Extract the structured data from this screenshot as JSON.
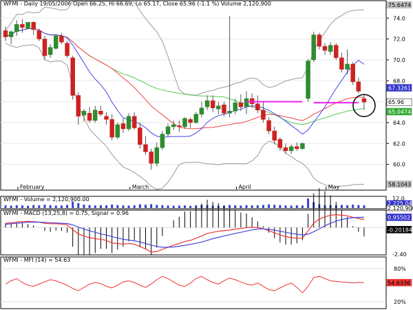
{
  "chart_data": [
    {
      "type": "candlestick",
      "title": "WFMI - Daily 19/05/2006 Open 66.25, Hi 66.69, Lo 65.17, Close 65.96 (-1.1 %) Volume 2,120,900",
      "ylim": [
        57.6,
        75.6
      ],
      "y_ticks": [
        "60.0",
        "62.0",
        "64.0",
        "66.0",
        "68.0",
        "70.0",
        "72.0",
        "74.0"
      ],
      "x_labels": [
        "February",
        "March",
        "April",
        "May"
      ],
      "tags": [
        {
          "label": "75.6474",
          "value": 75.6474,
          "bg": "#c0c0c0",
          "fg": "#000000"
        },
        {
          "label": "67.3261",
          "value": 67.3261,
          "bg": "#3333cc",
          "fg": "#ffffff"
        },
        {
          "label": "65.96",
          "value": 65.96,
          "bg": "#ffffff",
          "fg": "#000000"
        },
        {
          "label": "65.0474",
          "value": 65.0474,
          "bg": "#33aa33",
          "fg": "#ffffff"
        },
        {
          "label": "58.1043",
          "value": 58.1043,
          "bg": "#c0c0c0",
          "fg": "#000000"
        }
      ],
      "candles": [
        [
          72.8,
          73.2,
          71.8,
          72.2
        ],
        [
          72.2,
          72.8,
          71.5,
          72.7
        ],
        [
          72.7,
          73.8,
          72.3,
          73.4
        ],
        [
          73.4,
          73.9,
          72.6,
          73.1
        ],
        [
          73.0,
          73.6,
          72.9,
          73.6
        ],
        [
          73.6,
          73.7,
          72.4,
          72.9
        ],
        [
          72.8,
          73.0,
          71.8,
          72.0
        ],
        [
          72.0,
          72.3,
          70.0,
          70.4
        ],
        [
          70.5,
          71.5,
          70.2,
          71.2
        ],
        [
          71.1,
          72.5,
          71.0,
          72.3
        ],
        [
          72.3,
          72.6,
          71.5,
          71.7
        ],
        [
          71.6,
          71.8,
          70.2,
          70.4
        ],
        [
          70.2,
          70.4,
          66.2,
          66.6
        ],
        [
          66.6,
          66.9,
          63.8,
          64.6
        ],
        [
          64.7,
          65.3,
          64.1,
          65.1
        ],
        [
          64.9,
          65.5,
          64.0,
          64.2
        ],
        [
          64.2,
          65.6,
          64.0,
          65.2
        ],
        [
          65.1,
          65.6,
          64.6,
          64.8
        ],
        [
          64.6,
          65.0,
          63.8,
          64.3
        ],
        [
          64.3,
          64.8,
          62.3,
          62.6
        ],
        [
          62.6,
          64.0,
          62.4,
          63.8
        ],
        [
          63.9,
          64.4,
          63.0,
          63.4
        ],
        [
          63.4,
          64.9,
          63.2,
          64.6
        ],
        [
          64.6,
          65.0,
          63.3,
          63.5
        ],
        [
          63.5,
          64.0,
          61.5,
          61.9
        ],
        [
          61.9,
          62.7,
          60.9,
          61.2
        ],
        [
          61.2,
          61.5,
          59.5,
          60.1
        ],
        [
          60.1,
          62.1,
          59.8,
          61.6
        ],
        [
          61.6,
          63.2,
          61.4,
          62.9
        ],
        [
          62.9,
          63.9,
          62.6,
          63.6
        ],
        [
          63.6,
          64.2,
          63.3,
          63.8
        ],
        [
          63.7,
          64.2,
          63.1,
          63.6
        ],
        [
          63.6,
          64.5,
          63.4,
          64.4
        ],
        [
          64.3,
          64.5,
          63.5,
          64.0
        ],
        [
          64.0,
          65.0,
          63.9,
          64.8
        ],
        [
          64.8,
          66.0,
          64.5,
          65.4
        ],
        [
          65.5,
          66.6,
          65.2,
          66.1
        ],
        [
          66.1,
          66.6,
          65.0,
          65.4
        ],
        [
          65.3,
          66.0,
          64.8,
          65.6
        ],
        [
          65.7,
          66.0,
          64.6,
          64.9
        ],
        [
          64.9,
          74.2,
          64.5,
          65.1
        ],
        [
          65.1,
          66.3,
          64.8,
          65.9
        ],
        [
          65.9,
          66.7,
          65.1,
          65.5
        ],
        [
          65.5,
          67.0,
          64.8,
          66.3
        ],
        [
          66.3,
          66.8,
          65.4,
          65.8
        ],
        [
          65.8,
          66.6,
          64.9,
          65.2
        ],
        [
          65.2,
          66.0,
          64.0,
          64.3
        ],
        [
          64.2,
          64.5,
          62.9,
          63.2
        ],
        [
          63.2,
          63.6,
          61.9,
          62.3
        ],
        [
          62.4,
          62.6,
          61.3,
          61.6
        ],
        [
          61.6,
          62.0,
          61.0,
          61.3
        ],
        [
          61.3,
          61.9,
          61.0,
          61.7
        ],
        [
          61.7,
          62.1,
          61.3,
          61.5
        ],
        [
          61.5,
          62.1,
          61.4,
          62.0
        ],
        [
          66.3,
          70.1,
          66.0,
          69.9
        ],
        [
          70.0,
          72.7,
          69.8,
          72.4
        ],
        [
          72.4,
          72.6,
          71.0,
          71.3
        ],
        [
          71.3,
          71.6,
          70.5,
          70.9
        ],
        [
          70.8,
          71.7,
          70.5,
          71.4
        ],
        [
          71.4,
          71.6,
          70.0,
          70.2
        ],
        [
          70.2,
          70.7,
          68.8,
          69.1
        ],
        [
          69.1,
          71.0,
          68.6,
          69.6
        ],
        [
          69.6,
          69.8,
          67.6,
          67.9
        ],
        [
          67.9,
          68.3,
          66.8,
          67.0
        ],
        [
          66.3,
          66.7,
          65.2,
          65.96
        ]
      ],
      "resistance_lines": [
        {
          "value": 66.0,
          "from_index": 43,
          "to_index": 53
        },
        {
          "value": 65.9,
          "from_index": 55,
          "to_index": 63
        }
      ],
      "highlight_circle_index": 64
    },
    {
      "type": "bar",
      "title": "WFMI - Volume = 2,120,900.00",
      "y_ticks": [
        "12.0"
      ],
      "tags": [
        {
          "label": "2,225,043",
          "bg": "#3333cc",
          "fg": "#ffffff"
        },
        {
          "label": "2,120,900",
          "bg": "#ffffff",
          "fg": "#000000"
        }
      ],
      "volume_millions": [
        2.1,
        1.9,
        2.2,
        2.0,
        1.8,
        2.3,
        2.1,
        2.6,
        2.2,
        1.9,
        2.0,
        2.4,
        5.1,
        3.8,
        2.6,
        2.3,
        2.0,
        2.2,
        2.1,
        2.7,
        2.3,
        2.0,
        1.9,
        2.1,
        2.9,
        2.6,
        3.0,
        2.4,
        2.2,
        2.0,
        1.8,
        1.9,
        2.0,
        1.7,
        2.1,
        2.3,
        2.2,
        1.9,
        1.8,
        2.0,
        2.4,
        2.1,
        1.9,
        2.2,
        2.0,
        2.1,
        2.4,
        2.8,
        2.5,
        2.2,
        2.0,
        1.9,
        2.1,
        2.0,
        7.4,
        4.6,
        2.9,
        2.2,
        2.3,
        2.1,
        2.4,
        2.2,
        2.6,
        2.3,
        2.1
      ]
    },
    {
      "type": "line",
      "title": "WFMI - MACD (13,25,8) = 0.75, Signal = 0.96",
      "ylim": [
        -2.5,
        1.5
      ],
      "y_ticks": [
        "-2.40"
      ],
      "tags": [
        {
          "label": "0.955021",
          "value": 0.955021,
          "bg": "#3333cc",
          "fg": "#ffffff"
        },
        {
          "label": "-0.201847",
          "value": -0.201847,
          "bg": "#000000",
          "fg": "#ffffff"
        }
      ],
      "series": [
        {
          "name": "MACD",
          "color": "#ee3333",
          "values": [
            0.4,
            0.45,
            0.5,
            0.55,
            0.58,
            0.55,
            0.5,
            0.4,
            0.35,
            0.35,
            0.32,
            0.25,
            -0.2,
            -0.6,
            -0.8,
            -0.95,
            -1.05,
            -1.1,
            -1.2,
            -1.45,
            -1.5,
            -1.55,
            -1.5,
            -1.55,
            -1.8,
            -2.0,
            -2.3,
            -2.25,
            -2.05,
            -1.85,
            -1.65,
            -1.5,
            -1.3,
            -1.2,
            -1.0,
            -0.8,
            -0.55,
            -0.45,
            -0.35,
            -0.3,
            -0.25,
            -0.15,
            -0.1,
            0.0,
            0.02,
            0.0,
            -0.1,
            -0.3,
            -0.5,
            -0.7,
            -0.85,
            -0.95,
            -1.0,
            -1.0,
            -0.3,
            0.4,
            0.8,
            1.0,
            1.15,
            1.2,
            1.15,
            1.1,
            0.95,
            0.85,
            0.75
          ]
        },
        {
          "name": "Signal",
          "color": "#4444dd",
          "values": [
            0.3,
            0.35,
            0.4,
            0.45,
            0.5,
            0.5,
            0.5,
            0.48,
            0.45,
            0.42,
            0.4,
            0.37,
            0.25,
            0.05,
            -0.15,
            -0.3,
            -0.45,
            -0.6,
            -0.7,
            -0.85,
            -0.98,
            -1.1,
            -1.18,
            -1.25,
            -1.35,
            -1.5,
            -1.65,
            -1.78,
            -1.85,
            -1.85,
            -1.82,
            -1.75,
            -1.67,
            -1.58,
            -1.48,
            -1.36,
            -1.2,
            -1.05,
            -0.92,
            -0.8,
            -0.68,
            -0.55,
            -0.45,
            -0.33,
            -0.22,
            -0.14,
            -0.13,
            -0.18,
            -0.25,
            -0.35,
            -0.45,
            -0.55,
            -0.63,
            -0.7,
            -0.62,
            -0.4,
            -0.12,
            0.15,
            0.4,
            0.6,
            0.75,
            0.85,
            0.92,
            0.95,
            0.96
          ]
        }
      ],
      "histogram": {
        "name": "MACD - Signal",
        "color": "#000000"
      }
    },
    {
      "type": "line",
      "title": "WFMI - MFI (14) = 54.63",
      "ylim": [
        10,
        90
      ],
      "y_ticks": [
        "80%",
        "20%"
      ],
      "tags": [
        {
          "label": "54.6336",
          "value": 54.6336,
          "bg": "#ee3333",
          "fg": "#000000"
        }
      ],
      "series": [
        {
          "name": "MFI",
          "color": "#ee3333",
          "values": [
            52,
            58,
            62,
            55,
            50,
            48,
            52,
            56,
            60,
            58,
            54,
            50,
            44,
            40,
            46,
            52,
            55,
            53,
            48,
            45,
            50,
            56,
            58,
            55,
            50,
            46,
            52,
            60,
            66,
            62,
            56,
            50,
            48,
            54,
            62,
            66,
            60,
            55,
            52,
            58,
            63,
            60,
            56,
            52,
            50,
            54,
            48,
            42,
            40,
            45,
            50,
            54,
            46,
            36,
            48,
            64,
            66,
            62,
            58,
            57,
            56,
            55,
            54,
            55,
            54.63
          ]
        }
      ]
    }
  ]
}
